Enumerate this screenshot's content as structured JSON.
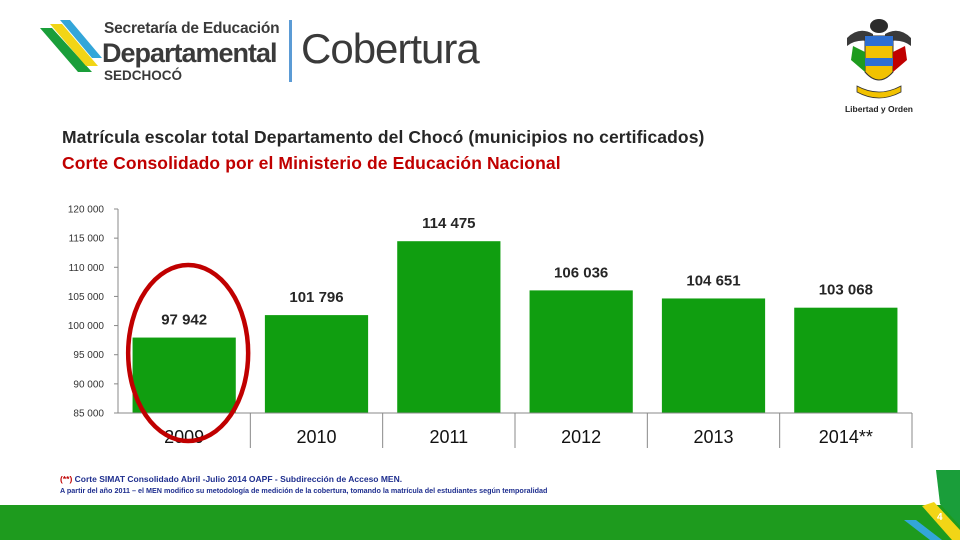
{
  "header": {
    "logo_line1": "Secretaría de Educación",
    "logo_line2": "Departamental",
    "logo_line3": "SEDCHOCÓ",
    "section": "Cobertura",
    "crest_caption": "Libertad y Orden"
  },
  "title_line1": "Matrícula escolar total Departamento del Chocó (municipios no certificados)",
  "title_line2": "Corte Consolidado por el Ministerio de Educación Nacional",
  "chart_data": {
    "type": "bar",
    "categories": [
      "2009",
      "2010",
      "2011",
      "2012",
      "2013",
      "2014**"
    ],
    "values": [
      97942,
      101796,
      114475,
      106036,
      104651,
      103068
    ],
    "value_labels": [
      "97 942",
      "101 796",
      "114 475",
      "106 036",
      "104 651",
      "103 068"
    ],
    "yticks": [
      "85 000",
      "90 000",
      "95 000",
      "100 000",
      "105 000",
      "110 000",
      "115 000",
      "120 000"
    ],
    "ylim": [
      85000,
      120000
    ],
    "grid": false,
    "legend": "none",
    "bar_color": "#109e10",
    "highlight": {
      "category": "2009",
      "shape": "ellipse",
      "color": "#c00000"
    }
  },
  "footnotes": {
    "note1_prefix": "(**)",
    "note1": " Corte SIMAT Consolidado Abril -Julio 2014 OAPF - Subdirección de Acceso MEN.",
    "note2": "A partir del año 2011 – el MEN modifico su metodología de medición de la cobertura, tomando la matrícula del estudiantes según temporalidad"
  },
  "footer": {
    "page_number": "4",
    "bar_color": "#1e9b1e"
  }
}
